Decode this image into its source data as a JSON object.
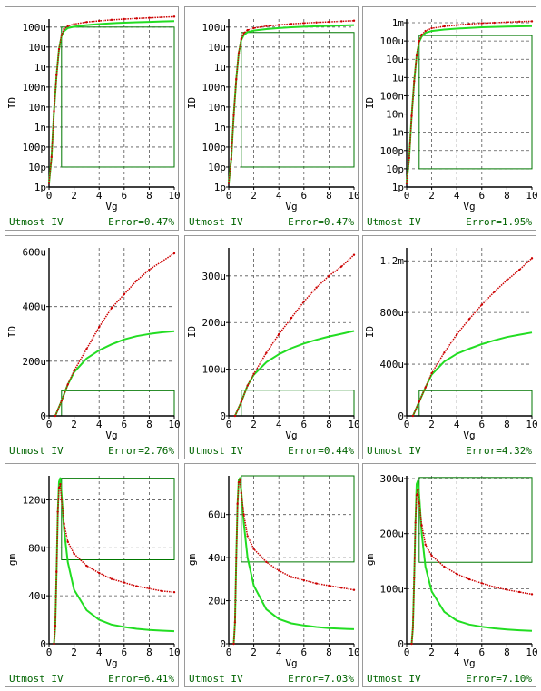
{
  "footer_label": "Utmost IV",
  "colors": {
    "measured": "#cc0000",
    "simulated": "#22dd22",
    "box": "#007700",
    "grid": "#555555",
    "border": "#9a9a9a",
    "footer": "#006400"
  },
  "chart_data": [
    {
      "type": "line",
      "scale": "log",
      "xlabel": "Vg",
      "ylabel": "ID",
      "xlim": [
        0,
        10
      ],
      "ylim_exp": [
        -12,
        -3.6
      ],
      "xticks": [
        "0",
        "2",
        "4",
        "6",
        "8",
        "10"
      ],
      "yticks": [
        {
          "v": -12,
          "l": "1p"
        },
        {
          "v": -11,
          "l": "10p"
        },
        {
          "v": -10,
          "l": "100p"
        },
        {
          "v": -9,
          "l": "1n"
        },
        {
          "v": -8,
          "l": "10n"
        },
        {
          "v": -7,
          "l": "100n"
        },
        {
          "v": -6,
          "l": "1u"
        },
        {
          "v": -5,
          "l": "10u"
        },
        {
          "v": -4,
          "l": "100u"
        }
      ],
      "box": {
        "x": [
          1,
          10
        ],
        "y_exp": [
          -11,
          -4
        ]
      },
      "series": [
        {
          "role": "measured",
          "x": [
            0,
            0.2,
            0.4,
            0.6,
            0.8,
            1.0,
            1.2,
            1.5,
            2,
            3,
            4,
            5,
            6,
            7,
            8,
            9,
            10
          ],
          "y": [
            -11.8,
            -10.5,
            -8.2,
            -6.4,
            -5.1,
            -4.4,
            -4.1,
            -3.95,
            -3.85,
            -3.75,
            -3.69,
            -3.64,
            -3.6,
            -3.57,
            -3.54,
            -3.51,
            -3.48
          ]
        },
        {
          "role": "simulated",
          "x": [
            0,
            0.2,
            0.4,
            0.6,
            0.8,
            1.0,
            1.2,
            1.5,
            2,
            3,
            4,
            5,
            6,
            7,
            8,
            9,
            10
          ],
          "y": [
            -11.8,
            -10.5,
            -8.2,
            -6.4,
            -5.1,
            -4.45,
            -4.2,
            -4.05,
            -3.98,
            -3.9,
            -3.85,
            -3.81,
            -3.78,
            -3.76,
            -3.74,
            -3.72,
            -3.7
          ]
        }
      ],
      "error": "Error=0.47%"
    },
    {
      "type": "line",
      "scale": "log",
      "xlabel": "Vg",
      "ylabel": "ID",
      "xlim": [
        0,
        10
      ],
      "ylim_exp": [
        -12,
        -3.6
      ],
      "xticks": [
        "0",
        "2",
        "4",
        "6",
        "8",
        "10"
      ],
      "yticks": [
        {
          "v": -12,
          "l": "1p"
        },
        {
          "v": -11,
          "l": "10p"
        },
        {
          "v": -10,
          "l": "100p"
        },
        {
          "v": -9,
          "l": "1n"
        },
        {
          "v": -8,
          "l": "10n"
        },
        {
          "v": -7,
          "l": "100n"
        },
        {
          "v": -6,
          "l": "1u"
        },
        {
          "v": -5,
          "l": "10u"
        },
        {
          "v": -4,
          "l": "100u"
        }
      ],
      "box": {
        "x": [
          1,
          10
        ],
        "y_exp": [
          -11,
          -4.27
        ]
      },
      "series": [
        {
          "role": "measured",
          "x": [
            0,
            0.2,
            0.4,
            0.6,
            0.8,
            1.0,
            1.2,
            1.5,
            2,
            3,
            4,
            5,
            6,
            7,
            8,
            9,
            10
          ],
          "y": [
            -11.8,
            -10.6,
            -8.4,
            -6.6,
            -5.3,
            -4.6,
            -4.3,
            -4.15,
            -4.05,
            -3.95,
            -3.89,
            -3.84,
            -3.8,
            -3.77,
            -3.74,
            -3.71,
            -3.68
          ]
        },
        {
          "role": "simulated",
          "x": [
            0,
            0.2,
            0.4,
            0.6,
            0.8,
            1.0,
            1.2,
            1.5,
            2,
            3,
            4,
            5,
            6,
            7,
            8,
            9,
            10
          ],
          "y": [
            -11.8,
            -10.6,
            -8.4,
            -6.6,
            -5.3,
            -4.65,
            -4.4,
            -4.25,
            -4.17,
            -4.1,
            -4.05,
            -4.01,
            -3.98,
            -3.96,
            -3.94,
            -3.92,
            -3.9
          ]
        }
      ],
      "error": "Error=0.47%"
    },
    {
      "type": "line",
      "scale": "log",
      "xlabel": "Vg",
      "ylabel": "ID",
      "xlim": [
        0,
        10
      ],
      "ylim_exp": [
        -12,
        -2.8
      ],
      "xticks": [
        "0",
        "2",
        "4",
        "6",
        "8",
        "10"
      ],
      "yticks": [
        {
          "v": -12,
          "l": "1p"
        },
        {
          "v": -11,
          "l": "10p"
        },
        {
          "v": -10,
          "l": "100p"
        },
        {
          "v": -9,
          "l": "1n"
        },
        {
          "v": -8,
          "l": "10n"
        },
        {
          "v": -7,
          "l": "100n"
        },
        {
          "v": -6,
          "l": "1u"
        },
        {
          "v": -5,
          "l": "10u"
        },
        {
          "v": -4,
          "l": "100u"
        },
        {
          "v": -3,
          "l": "1m"
        }
      ],
      "box": {
        "x": [
          1,
          10
        ],
        "y_exp": [
          -11,
          -3.7
        ]
      },
      "series": [
        {
          "role": "measured",
          "x": [
            0,
            0.2,
            0.4,
            0.6,
            0.8,
            1.0,
            1.2,
            1.5,
            2,
            3,
            4,
            5,
            6,
            7,
            8,
            9,
            10
          ],
          "y": [
            -11.8,
            -10.4,
            -8.1,
            -6.2,
            -4.8,
            -4.0,
            -3.65,
            -3.45,
            -3.3,
            -3.2,
            -3.13,
            -3.07,
            -3.03,
            -3.0,
            -2.97,
            -2.94,
            -2.92
          ]
        },
        {
          "role": "simulated",
          "x": [
            0,
            0.2,
            0.4,
            0.6,
            0.8,
            1.0,
            1.2,
            1.5,
            2,
            3,
            4,
            5,
            6,
            7,
            8,
            9,
            10
          ],
          "y": [
            -11.8,
            -10.4,
            -8.1,
            -6.2,
            -4.8,
            -4.05,
            -3.75,
            -3.55,
            -3.45,
            -3.37,
            -3.32,
            -3.28,
            -3.25,
            -3.23,
            -3.21,
            -3.2,
            -3.19
          ]
        }
      ],
      "error": "Error=1.95%"
    },
    {
      "type": "line",
      "scale": "linear",
      "xlabel": "Vg",
      "ylabel": "ID",
      "xlim": [
        0,
        10
      ],
      "ylim": [
        0,
        615
      ],
      "xticks": [
        "0",
        "2",
        "4",
        "6",
        "8",
        "10"
      ],
      "yticks": [
        {
          "v": 0,
          "l": "0"
        },
        {
          "v": 200,
          "l": "200u"
        },
        {
          "v": 400,
          "l": "400u"
        },
        {
          "v": 600,
          "l": "600u"
        }
      ],
      "box": {
        "x": [
          1,
          10
        ],
        "y": [
          0,
          92
        ]
      },
      "series": [
        {
          "role": "measured",
          "x": [
            0.5,
            1,
            1.5,
            2,
            3,
            4,
            5,
            6,
            7,
            8,
            9,
            10
          ],
          "y": [
            0,
            55,
            115,
            165,
            245,
            325,
            395,
            445,
            495,
            535,
            565,
            595
          ]
        },
        {
          "role": "simulated",
          "x": [
            0.5,
            1,
            1.5,
            2,
            3,
            4,
            5,
            6,
            7,
            8,
            9,
            10
          ],
          "y": [
            0,
            55,
            115,
            160,
            210,
            240,
            262,
            280,
            292,
            300,
            306,
            310
          ]
        }
      ],
      "error": "Error=2.76%"
    },
    {
      "type": "line",
      "scale": "linear",
      "xlabel": "Vg",
      "ylabel": "ID",
      "xlim": [
        0,
        10
      ],
      "ylim": [
        0,
        360
      ],
      "xticks": [
        "0",
        "2",
        "4",
        "6",
        "8",
        "10"
      ],
      "yticks": [
        {
          "v": 0,
          "l": "0"
        },
        {
          "v": 100,
          "l": "100u"
        },
        {
          "v": 200,
          "l": "200u"
        },
        {
          "v": 300,
          "l": "300u"
        }
      ],
      "box": {
        "x": [
          1,
          10
        ],
        "y": [
          0,
          55
        ]
      },
      "series": [
        {
          "role": "measured",
          "x": [
            0.5,
            1,
            1.5,
            2,
            3,
            4,
            5,
            6,
            7,
            8,
            9,
            10
          ],
          "y": [
            0,
            30,
            65,
            90,
            135,
            175,
            210,
            245,
            275,
            300,
            320,
            345
          ]
        },
        {
          "role": "simulated",
          "x": [
            0.5,
            1,
            1.5,
            2,
            3,
            4,
            5,
            6,
            7,
            8,
            9,
            10
          ],
          "y": [
            0,
            30,
            65,
            88,
            115,
            132,
            145,
            155,
            163,
            170,
            176,
            182
          ]
        }
      ],
      "error": "Error=0.44%"
    },
    {
      "type": "line",
      "scale": "linear",
      "xlabel": "Vg",
      "ylabel": "ID",
      "xlim": [
        0,
        10
      ],
      "ylim": [
        0,
        1300
      ],
      "xticks": [
        "0",
        "2",
        "4",
        "6",
        "8",
        "10"
      ],
      "yticks": [
        {
          "v": 0,
          "l": "0"
        },
        {
          "v": 400,
          "l": "400u"
        },
        {
          "v": 800,
          "l": "800u"
        },
        {
          "v": 1200,
          "l": "1.2m"
        }
      ],
      "box": {
        "x": [
          1,
          10
        ],
        "y": [
          0,
          195
        ]
      },
      "series": [
        {
          "role": "measured",
          "x": [
            0.5,
            1,
            1.5,
            2,
            3,
            4,
            5,
            6,
            7,
            8,
            9,
            10
          ],
          "y": [
            0,
            110,
            220,
            330,
            490,
            630,
            750,
            860,
            960,
            1050,
            1130,
            1220
          ]
        },
        {
          "role": "simulated",
          "x": [
            0.5,
            1,
            1.5,
            2,
            3,
            4,
            5,
            6,
            7,
            8,
            9,
            10
          ],
          "y": [
            0,
            110,
            220,
            320,
            420,
            480,
            520,
            555,
            585,
            610,
            628,
            645
          ]
        }
      ],
      "error": "Error=4.32%"
    },
    {
      "type": "line",
      "scale": "linear",
      "xlabel": "Vg",
      "ylabel": "gm",
      "xlim": [
        0,
        10
      ],
      "ylim": [
        0,
        140
      ],
      "xticks": [
        "0",
        "2",
        "4",
        "6",
        "8",
        "10"
      ],
      "yticks": [
        {
          "v": 0,
          "l": "0"
        },
        {
          "v": 40,
          "l": "40u"
        },
        {
          "v": 80,
          "l": "80u"
        },
        {
          "v": 120,
          "l": "120u"
        }
      ],
      "box": {
        "x": [
          1,
          10
        ],
        "y": [
          70,
          138
        ]
      },
      "series": [
        {
          "role": "measured",
          "x": [
            0.4,
            0.5,
            0.6,
            0.7,
            0.8,
            0.9,
            1.0,
            1.2,
            1.5,
            2,
            3,
            4,
            5,
            6,
            7,
            8,
            9,
            10
          ],
          "y": [
            0,
            15,
            60,
            110,
            130,
            133,
            120,
            100,
            85,
            75,
            65,
            59,
            54,
            51,
            48,
            46,
            44,
            43
          ]
        },
        {
          "role": "simulated",
          "x": [
            0.4,
            0.5,
            0.6,
            0.7,
            0.8,
            0.9,
            1.0,
            1.2,
            1.5,
            2,
            3,
            4,
            5,
            6,
            7,
            8,
            9,
            10
          ],
          "y": [
            0,
            15,
            60,
            110,
            135,
            138,
            125,
            95,
            68,
            45,
            28,
            20,
            16,
            14,
            12.5,
            11.5,
            11,
            10.5
          ]
        }
      ],
      "error": "Error=6.41%"
    },
    {
      "type": "line",
      "scale": "linear",
      "xlabel": "Vg",
      "ylabel": "gm",
      "xlim": [
        0,
        10
      ],
      "ylim": [
        0,
        78
      ],
      "xticks": [
        "0",
        "2",
        "4",
        "6",
        "8",
        "10"
      ],
      "yticks": [
        {
          "v": 0,
          "l": "0"
        },
        {
          "v": 20,
          "l": "20u"
        },
        {
          "v": 40,
          "l": "40u"
        },
        {
          "v": 60,
          "l": "60u"
        }
      ],
      "box": {
        "x": [
          1,
          10
        ],
        "y": [
          38,
          78
        ]
      },
      "series": [
        {
          "role": "measured",
          "x": [
            0.4,
            0.5,
            0.6,
            0.7,
            0.8,
            0.9,
            1.0,
            1.2,
            1.5,
            2,
            3,
            4,
            5,
            6,
            7,
            8,
            9,
            10
          ],
          "y": [
            0,
            10,
            40,
            65,
            75,
            76,
            70,
            60,
            50,
            44,
            38,
            34,
            31,
            29.5,
            28,
            27,
            26,
            25
          ]
        },
        {
          "role": "simulated",
          "x": [
            0.4,
            0.5,
            0.6,
            0.7,
            0.8,
            0.9,
            1.0,
            1.2,
            1.5,
            2,
            3,
            4,
            5,
            6,
            7,
            8,
            9,
            10
          ],
          "y": [
            0,
            10,
            40,
            65,
            76,
            77,
            71,
            56,
            40,
            27,
            16,
            11.5,
            9.5,
            8.5,
            7.8,
            7.3,
            7,
            6.8
          ]
        }
      ],
      "error": "Error=7.03%"
    },
    {
      "type": "line",
      "scale": "linear",
      "xlabel": "Vg",
      "ylabel": "gm",
      "xlim": [
        0,
        10
      ],
      "ylim": [
        0,
        305
      ],
      "xticks": [
        "0",
        "2",
        "4",
        "6",
        "8",
        "10"
      ],
      "yticks": [
        {
          "v": 0,
          "l": "0"
        },
        {
          "v": 100,
          "l": "100u"
        },
        {
          "v": 200,
          "l": "200u"
        },
        {
          "v": 300,
          "l": "300u"
        }
      ],
      "box": {
        "x": [
          1,
          10
        ],
        "y": [
          148,
          302
        ]
      },
      "series": [
        {
          "role": "measured",
          "x": [
            0.4,
            0.5,
            0.6,
            0.7,
            0.8,
            0.9,
            1.0,
            1.2,
            1.5,
            2,
            3,
            4,
            5,
            6,
            7,
            8,
            9,
            10
          ],
          "y": [
            0,
            30,
            120,
            220,
            270,
            280,
            255,
            215,
            180,
            160,
            140,
            127,
            117,
            110,
            103,
            98,
            94,
            90
          ]
        },
        {
          "role": "simulated",
          "x": [
            0.4,
            0.5,
            0.6,
            0.7,
            0.8,
            0.9,
            1.0,
            1.2,
            1.5,
            2,
            3,
            4,
            5,
            6,
            7,
            8,
            9,
            10
          ],
          "y": [
            0,
            30,
            120,
            220,
            290,
            296,
            270,
            200,
            140,
            95,
            58,
            42,
            35,
            31,
            28,
            26,
            24.5,
            23.5
          ]
        }
      ],
      "error": "Error=7.10%"
    }
  ]
}
